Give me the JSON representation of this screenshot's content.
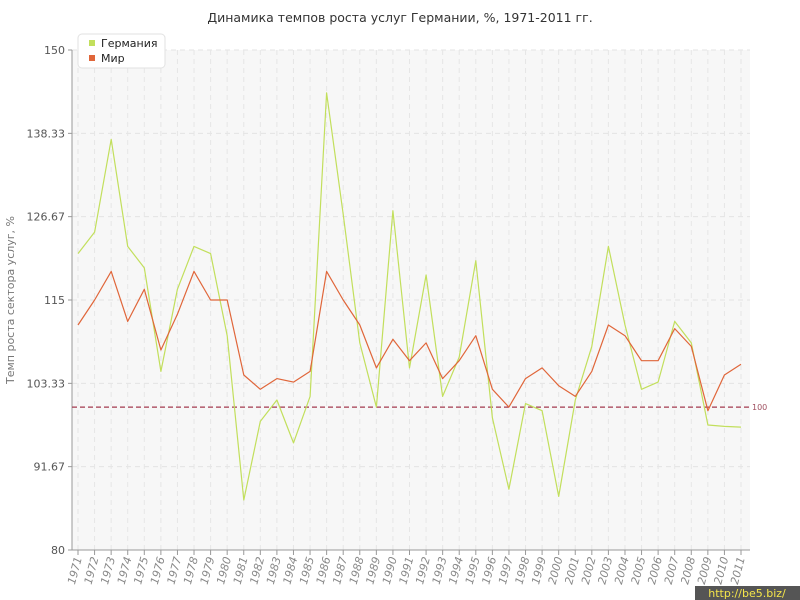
{
  "chart_data": {
    "type": "line",
    "title": "Динамика темпов роста услуг Германии, %, 1971-2011 гг.",
    "xlabel": "",
    "ylabel": "Темп роста сектора услуг, %",
    "ylim": [
      80,
      150
    ],
    "yticks": [
      "80",
      "91.67",
      "103.33",
      "115",
      "126.67",
      "138.33",
      "150"
    ],
    "x": [
      "1971",
      "1972",
      "1973",
      "1974",
      "1975",
      "1976",
      "1977",
      "1978",
      "1979",
      "1980",
      "1981",
      "1982",
      "1983",
      "1984",
      "1985",
      "1986",
      "1987",
      "1988",
      "1989",
      "1990",
      "1991",
      "1992",
      "1993",
      "1994",
      "1995",
      "1996",
      "1997",
      "1998",
      "1999",
      "2000",
      "2001",
      "2002",
      "2003",
      "2004",
      "2005",
      "2006",
      "2007",
      "2008",
      "2009",
      "2010",
      "2011"
    ],
    "series": [
      {
        "name": "Германия",
        "color": "#c2df5c",
        "values": [
          121.5,
          124.5,
          137.5,
          122.5,
          119.5,
          105.0,
          116.5,
          122.5,
          121.5,
          110.0,
          87.0,
          98.0,
          101.0,
          95.0,
          101.5,
          144.0,
          127.0,
          109.0,
          100.0,
          127.5,
          105.5,
          118.5,
          101.5,
          107.0,
          120.5,
          98.5,
          88.5,
          100.5,
          99.5,
          87.5,
          101.0,
          108.5,
          122.5,
          111.5,
          102.5,
          103.5,
          112.0,
          109.0,
          97.5,
          97.3,
          97.2
        ]
      },
      {
        "name": "Мир",
        "color": "#e0663a",
        "values": [
          111.5,
          115.0,
          119.0,
          112.0,
          116.5,
          108.0,
          113.0,
          119.0,
          115.0,
          115.0,
          104.5,
          102.5,
          104.0,
          103.5,
          105.0,
          119.0,
          115.0,
          111.5,
          105.5,
          109.5,
          106.5,
          109.0,
          104.0,
          106.5,
          110.0,
          102.5,
          100.0,
          104.0,
          105.5,
          103.0,
          101.5,
          105.0,
          111.5,
          110.0,
          106.5,
          106.5,
          111.0,
          108.5,
          99.5,
          104.5,
          106.0
        ]
      }
    ],
    "reference_line": {
      "value": 100,
      "label": "100",
      "color": "#a33a4f"
    },
    "grid": true,
    "legend": "top-left"
  },
  "watermark": "http://be5.biz/"
}
